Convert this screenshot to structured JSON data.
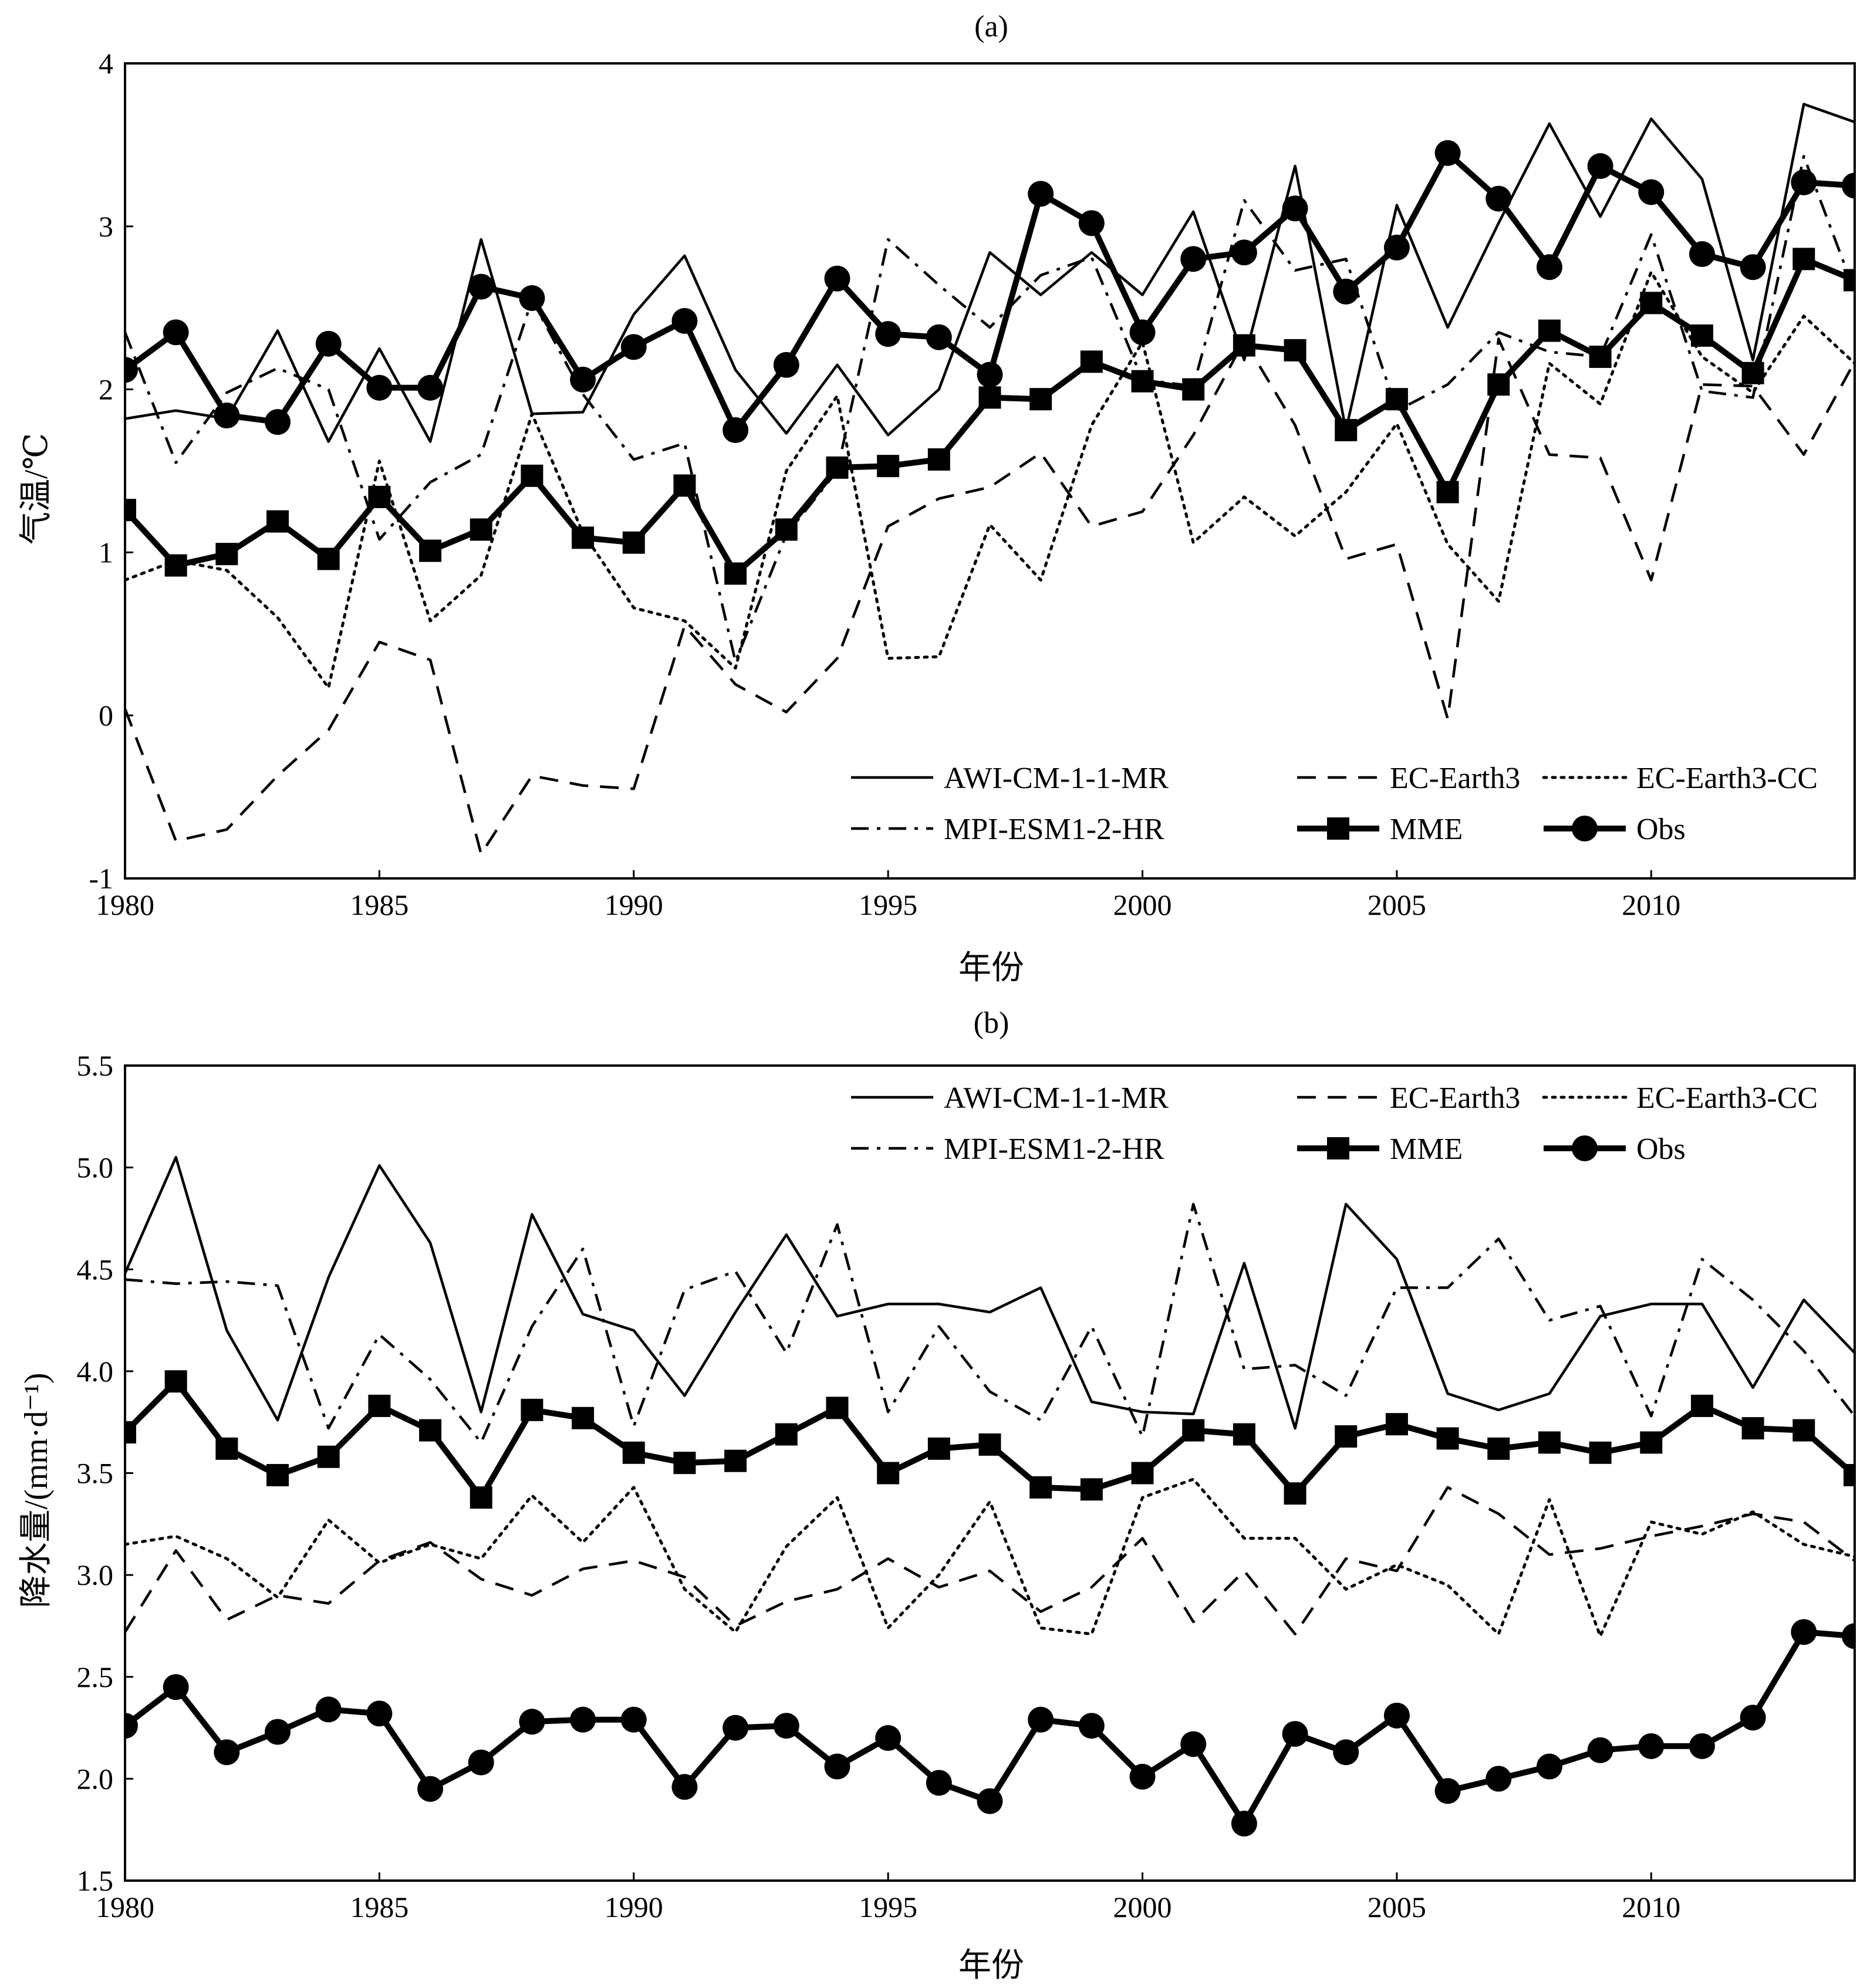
{
  "chart_data": [
    {
      "type": "line",
      "title": "(a)",
      "xlabel": "年份",
      "ylabel": "气温/℃",
      "xlim": [
        1980,
        2014
      ],
      "ylim": [
        -1,
        4
      ],
      "xticks": [
        1980,
        1985,
        1990,
        1995,
        2000,
        2005,
        2010
      ],
      "yticks": [
        -1,
        0,
        1,
        2,
        3,
        4
      ],
      "ytick_labels": [
        "-1",
        "0",
        "1",
        "2",
        "3",
        "4"
      ],
      "legend_position": "bottom-right",
      "x": [
        1980,
        1981,
        1982,
        1983,
        1984,
        1985,
        1986,
        1987,
        1988,
        1989,
        1990,
        1991,
        1992,
        1993,
        1994,
        1995,
        1996,
        1997,
        1998,
        1999,
        2000,
        2001,
        2002,
        2003,
        2004,
        2005,
        2006,
        2007,
        2008,
        2009,
        2010,
        2011,
        2012,
        2013,
        2014
      ],
      "series": [
        {
          "name": "AWI-CM-1-1-MR",
          "style": "solid",
          "values": [
            1.82,
            1.87,
            1.82,
            2.36,
            1.68,
            2.25,
            1.68,
            2.92,
            1.85,
            1.86,
            2.46,
            2.82,
            2.12,
            1.73,
            2.15,
            1.72,
            2.0,
            2.84,
            2.58,
            2.84,
            2.58,
            3.09,
            2.18,
            3.37,
            1.75,
            3.13,
            2.38,
            3.02,
            3.63,
            3.06,
            3.66,
            3.29,
            2.18,
            3.75,
            3.64
          ]
        },
        {
          "name": "EC-Earth3",
          "style": "dashed",
          "values": [
            0.04,
            -0.77,
            -0.7,
            -0.37,
            -0.09,
            0.45,
            0.34,
            -0.85,
            -0.37,
            -0.43,
            -0.45,
            0.55,
            0.19,
            0.02,
            0.35,
            1.16,
            1.33,
            1.4,
            1.61,
            1.16,
            1.25,
            1.72,
            2.3,
            1.78,
            0.96,
            1.05,
            -0.02,
            2.31,
            1.6,
            1.58,
            0.83,
            2.03,
            2.02,
            1.6,
            2.17
          ]
        },
        {
          "name": "EC-Earth3-CC",
          "style": "dotted",
          "values": [
            0.83,
            0.95,
            0.89,
            0.6,
            0.17,
            1.56,
            0.58,
            0.86,
            1.85,
            1.12,
            0.66,
            0.58,
            0.29,
            1.5,
            1.96,
            0.35,
            0.36,
            1.17,
            0.83,
            1.78,
            2.29,
            1.06,
            1.34,
            1.1,
            1.37,
            1.79,
            1.05,
            0.7,
            2.16,
            1.91,
            2.72,
            2.2,
            1.98,
            2.45,
            2.16
          ]
        },
        {
          "name": "MPI-ESM1-2-HR",
          "style": "dashdot",
          "values": [
            2.35,
            1.55,
            1.98,
            2.13,
            2.0,
            1.08,
            1.43,
            1.6,
            2.55,
            1.97,
            1.57,
            1.67,
            0.33,
            1.11,
            1.5,
            2.92,
            2.64,
            2.38,
            2.7,
            2.81,
            2.06,
            2.02,
            3.16,
            2.73,
            2.8,
            1.87,
            2.03,
            2.35,
            2.23,
            2.2,
            2.95,
            1.99,
            1.95,
            3.43,
            2.6
          ]
        },
        {
          "name": "MME",
          "style": "square",
          "values": [
            1.26,
            0.92,
            0.99,
            1.19,
            0.96,
            1.34,
            1.01,
            1.14,
            1.47,
            1.09,
            1.06,
            1.41,
            0.87,
            1.14,
            1.52,
            1.53,
            1.57,
            1.95,
            1.94,
            2.17,
            2.05,
            2.0,
            2.27,
            2.24,
            1.75,
            1.94,
            1.37,
            2.03,
            2.36,
            2.2,
            2.53,
            2.33,
            2.1,
            2.8,
            2.67
          ]
        },
        {
          "name": "Obs",
          "style": "circle",
          "values": [
            2.12,
            2.35,
            1.84,
            1.8,
            2.28,
            2.01,
            2.01,
            2.63,
            2.56,
            2.06,
            2.26,
            2.42,
            1.75,
            2.15,
            2.68,
            2.34,
            2.32,
            2.09,
            3.2,
            3.02,
            2.35,
            2.8,
            2.84,
            3.11,
            2.6,
            2.87,
            3.45,
            3.17,
            2.75,
            3.37,
            3.21,
            2.83,
            2.75,
            3.27,
            3.25
          ]
        }
      ]
    },
    {
      "type": "line",
      "title": "(b)",
      "xlabel": "年份",
      "ylabel": "降水量/(mm·d⁻¹)",
      "xlim": [
        1980,
        2014
      ],
      "ylim": [
        1.5,
        5.5
      ],
      "xticks": [
        1980,
        1985,
        1990,
        1995,
        2000,
        2005,
        2010
      ],
      "yticks": [
        1.5,
        2.0,
        2.5,
        3.0,
        3.5,
        4.0,
        4.5,
        5.0,
        5.5
      ],
      "ytick_labels": [
        "1.5",
        "2.0",
        "2.5",
        "3.0",
        "3.5",
        "4.0",
        "4.5",
        "5.0",
        "5.5"
      ],
      "legend_position": "top-right",
      "x": [
        1980,
        1981,
        1982,
        1983,
        1984,
        1985,
        1986,
        1987,
        1988,
        1989,
        1990,
        1991,
        1992,
        1993,
        1994,
        1995,
        1996,
        1997,
        1998,
        1999,
        2000,
        2001,
        2002,
        2003,
        2004,
        2005,
        2006,
        2007,
        2008,
        2009,
        2010,
        2011,
        2012,
        2013,
        2014
      ],
      "series": [
        {
          "name": "AWI-CM-1-1-MR",
          "style": "solid",
          "values": [
            4.48,
            5.05,
            4.2,
            3.76,
            4.46,
            5.01,
            4.63,
            3.8,
            4.77,
            4.28,
            4.2,
            3.88,
            4.29,
            4.67,
            4.27,
            4.33,
            4.33,
            4.29,
            4.41,
            3.85,
            3.8,
            3.79,
            4.53,
            3.72,
            4.82,
            4.55,
            3.89,
            3.81,
            3.89,
            4.27,
            4.33,
            4.33,
            3.92,
            4.35,
            4.09
          ]
        },
        {
          "name": "EC-Earth3",
          "style": "dashed",
          "values": [
            2.72,
            3.12,
            2.78,
            2.9,
            2.86,
            3.07,
            3.16,
            2.98,
            2.9,
            3.03,
            3.07,
            2.99,
            2.75,
            2.87,
            2.93,
            3.08,
            2.94,
            3.02,
            2.82,
            2.94,
            3.18,
            2.77,
            3.02,
            2.71,
            3.08,
            3.02,
            3.43,
            3.3,
            3.1,
            3.13,
            3.19,
            3.24,
            3.3,
            3.26,
            3.07
          ]
        },
        {
          "name": "EC-Earth3-CC",
          "style": "dotted",
          "values": [
            3.15,
            3.19,
            3.08,
            2.89,
            3.27,
            3.06,
            3.15,
            3.08,
            3.39,
            3.16,
            3.43,
            2.93,
            2.72,
            3.14,
            3.38,
            2.74,
            3.0,
            3.36,
            2.74,
            2.71,
            3.38,
            3.47,
            3.18,
            3.18,
            2.93,
            3.05,
            2.95,
            2.71,
            3.37,
            2.7,
            3.26,
            3.2,
            3.31,
            3.15,
            3.09
          ]
        },
        {
          "name": "MPI-ESM1-2-HR",
          "style": "dashdot",
          "values": [
            4.45,
            4.43,
            4.44,
            4.42,
            3.72,
            4.18,
            3.96,
            3.65,
            4.22,
            4.6,
            3.73,
            4.4,
            4.49,
            4.09,
            4.72,
            3.8,
            4.22,
            3.9,
            3.76,
            4.22,
            3.68,
            4.82,
            4.01,
            4.03,
            3.88,
            4.41,
            4.41,
            4.65,
            4.25,
            4.32,
            3.78,
            4.55,
            4.35,
            4.1,
            3.78
          ]
        },
        {
          "name": "MME",
          "style": "square",
          "values": [
            3.7,
            3.95,
            3.62,
            3.49,
            3.58,
            3.83,
            3.71,
            3.38,
            3.81,
            3.77,
            3.6,
            3.55,
            3.56,
            3.69,
            3.82,
            3.5,
            3.62,
            3.64,
            3.43,
            3.42,
            3.5,
            3.71,
            3.69,
            3.4,
            3.68,
            3.74,
            3.67,
            3.62,
            3.65,
            3.6,
            3.65,
            3.83,
            3.72,
            3.71,
            3.49
          ]
        },
        {
          "name": "Obs",
          "style": "circle",
          "values": [
            2.26,
            2.45,
            2.13,
            2.23,
            2.34,
            2.32,
            1.95,
            2.08,
            2.28,
            2.29,
            2.29,
            1.96,
            2.25,
            2.26,
            2.06,
            2.2,
            1.98,
            1.89,
            2.29,
            2.26,
            2.01,
            2.17,
            1.78,
            2.22,
            2.13,
            2.31,
            1.94,
            2.0,
            2.06,
            2.14,
            2.16,
            2.16,
            2.3,
            2.72,
            2.7
          ]
        }
      ]
    }
  ]
}
